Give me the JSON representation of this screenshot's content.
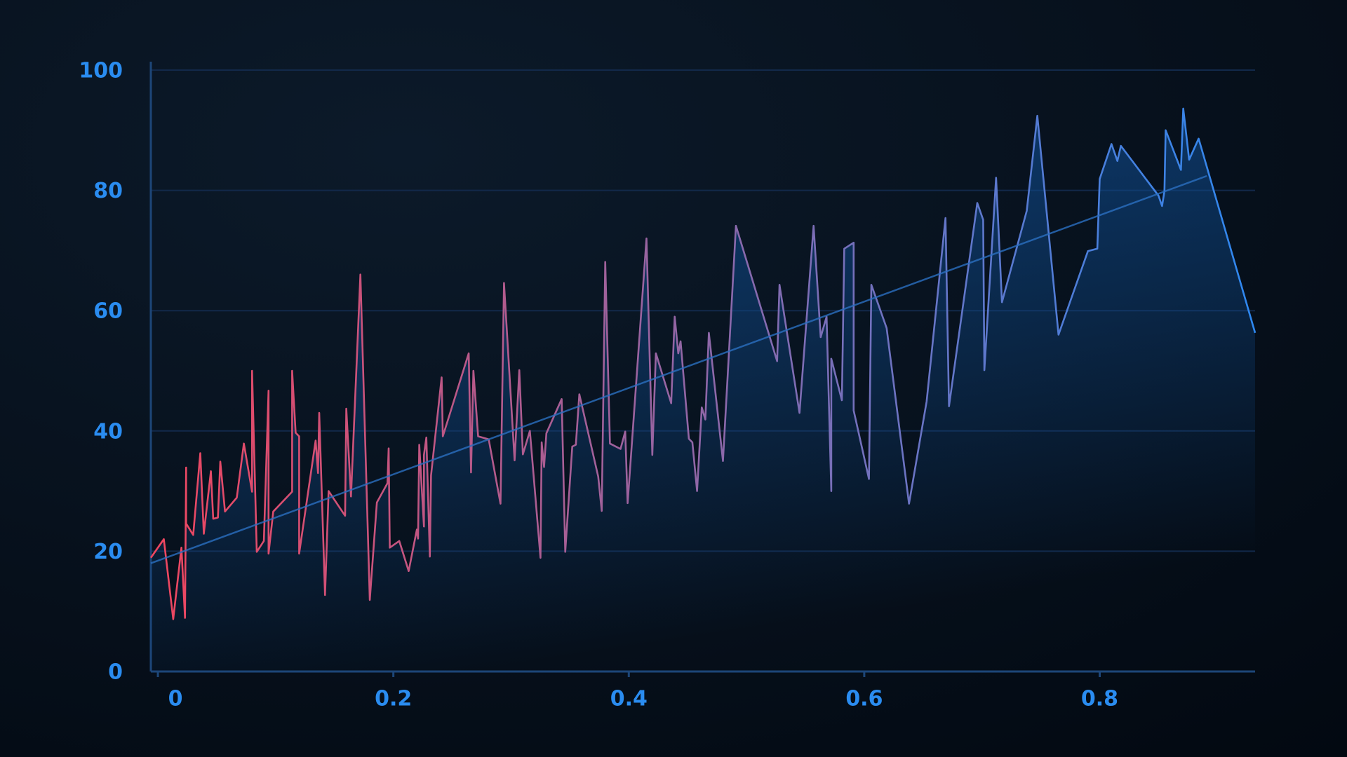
{
  "chart_data": {
    "type": "line",
    "xlim": [
      -0.006,
      0.932
    ],
    "ylim": [
      0,
      100
    ],
    "xticks": [
      0,
      0.2,
      0.4,
      0.6,
      0.8
    ],
    "yticks": [
      0,
      20,
      40,
      60,
      80,
      100
    ],
    "grid": true,
    "series": [
      {
        "colors": [
          "#f0465f",
          "#2e88f0"
        ],
        "area_color": "#0f4a8c",
        "x": [
          -0.006,
          0.005,
          0.013,
          0.02,
          0.023,
          0.024,
          0.024,
          0.03,
          0.036,
          0.039,
          0.045,
          0.047,
          0.051,
          0.053,
          0.057,
          0.067,
          0.073,
          0.08,
          0.08,
          0.084,
          0.09,
          0.094,
          0.094,
          0.098,
          0.114,
          0.114,
          0.117,
          0.12,
          0.12,
          0.134,
          0.136,
          0.137,
          0.142,
          0.145,
          0.159,
          0.16,
          0.164,
          0.172,
          0.18,
          0.186,
          0.195,
          0.196,
          0.197,
          0.205,
          0.213,
          0.22,
          0.221,
          0.222,
          0.226,
          0.226,
          0.228,
          0.231,
          0.232,
          0.241,
          0.242,
          0.264,
          0.266,
          0.268,
          0.272,
          0.281,
          0.291,
          0.294,
          0.303,
          0.307,
          0.31,
          0.316,
          0.325,
          0.326,
          0.328,
          0.33,
          0.343,
          0.346,
          0.352,
          0.355,
          0.358,
          0.374,
          0.377,
          0.38,
          0.384,
          0.393,
          0.397,
          0.399,
          0.415,
          0.42,
          0.423,
          0.436,
          0.439,
          0.442,
          0.444,
          0.451,
          0.454,
          0.458,
          0.462,
          0.465,
          0.468,
          0.48,
          0.491,
          0.526,
          0.528,
          0.545,
          0.557,
          0.563,
          0.568,
          0.572,
          0.572,
          0.581,
          0.583,
          0.591,
          0.591,
          0.604,
          0.606,
          0.619,
          0.638,
          0.653,
          0.669,
          0.672,
          0.696,
          0.701,
          0.702,
          0.712,
          0.717,
          0.738,
          0.747,
          0.765,
          0.79,
          0.798,
          0.8,
          0.81,
          0.815,
          0.818,
          0.85,
          0.853,
          0.855,
          0.856,
          0.869,
          0.871,
          0.876,
          0.884,
          0.932
        ],
        "values": [
          18.9,
          22,
          8.7,
          20.6,
          8.9,
          33.9,
          24.6,
          22.7,
          36.3,
          22.9,
          33.3,
          25.4,
          25.6,
          34.9,
          26.6,
          28.9,
          37.9,
          29.9,
          50,
          19.9,
          21.7,
          46.7,
          19.6,
          26.6,
          29.9,
          50,
          39.7,
          39.1,
          19.6,
          38.4,
          33,
          43,
          12.7,
          30,
          25.9,
          43.7,
          29.1,
          66,
          11.9,
          28.1,
          31.3,
          37.1,
          20.6,
          21.7,
          16.7,
          23.6,
          22.1,
          37.7,
          24.1,
          36,
          38.9,
          19.1,
          32.6,
          48.9,
          39.1,
          52.9,
          33.1,
          50,
          39.1,
          38.6,
          27.9,
          64.6,
          35.1,
          50.1,
          36.1,
          40,
          18.9,
          38.1,
          34,
          39.6,
          45.3,
          19.9,
          37.4,
          37.7,
          46.1,
          32.4,
          26.7,
          68.1,
          37.9,
          37,
          39.9,
          28,
          72,
          36,
          52.9,
          44.6,
          59,
          52.9,
          54.9,
          38.7,
          38.1,
          30,
          43.9,
          41.9,
          56.3,
          35,
          74.1,
          51.6,
          64.3,
          43,
          74.1,
          55.6,
          59,
          30,
          52,
          45.1,
          70.3,
          71.3,
          43.4,
          32,
          64.3,
          57.1,
          27.9,
          44.9,
          75.4,
          44.1,
          77.9,
          75.1,
          50.1,
          82.1,
          61.4,
          76.6,
          92.4,
          56,
          69.9,
          70.3,
          81.9,
          87.7,
          84.9,
          87.4,
          79.1,
          77.4,
          79.9,
          90,
          83.4,
          93.6,
          85.1,
          88.6,
          56.3
        ]
      }
    ],
    "trendline": {
      "color": "#2b6fc0",
      "x": [
        -0.006,
        0.891
      ],
      "values": [
        18,
        82.4
      ]
    }
  }
}
